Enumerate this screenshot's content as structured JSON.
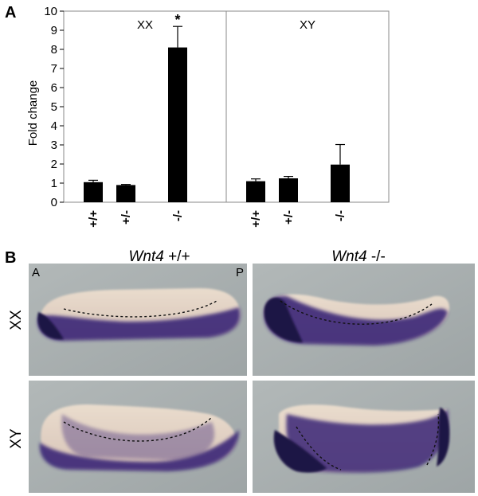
{
  "panels": {
    "a_letter": "A",
    "b_letter": "B"
  },
  "chart_data": {
    "type": "bar",
    "ylabel": "Fold change",
    "ylim": [
      0,
      10
    ],
    "yticks": [
      0,
      1,
      2,
      3,
      4,
      5,
      6,
      7,
      8,
      9,
      10
    ],
    "bar_color": "#000000",
    "groups": [
      {
        "label": "XX",
        "categories": [
          "+/+",
          "+/-",
          "-/-"
        ],
        "values": [
          1.05,
          0.9,
          8.1
        ],
        "errors": [
          0.1,
          0.03,
          1.1
        ],
        "significance": [
          "",
          "",
          "*"
        ]
      },
      {
        "label": "XY",
        "categories": [
          "+/+",
          "+/-",
          "-/-"
        ],
        "values": [
          1.1,
          1.25,
          1.97
        ],
        "errors": [
          0.12,
          0.1,
          1.05
        ],
        "significance": [
          "",
          "",
          ""
        ]
      }
    ]
  },
  "panel_b": {
    "columns": [
      {
        "gene": "Wnt4",
        "genotype": "+/+"
      },
      {
        "gene": "Wnt4",
        "genotype": "-/-"
      }
    ],
    "rows": [
      "XX",
      "XY"
    ],
    "anterior_label": "A",
    "posterior_label": "P",
    "stain_color": "#3a2577",
    "background_color": "#a6adae"
  }
}
